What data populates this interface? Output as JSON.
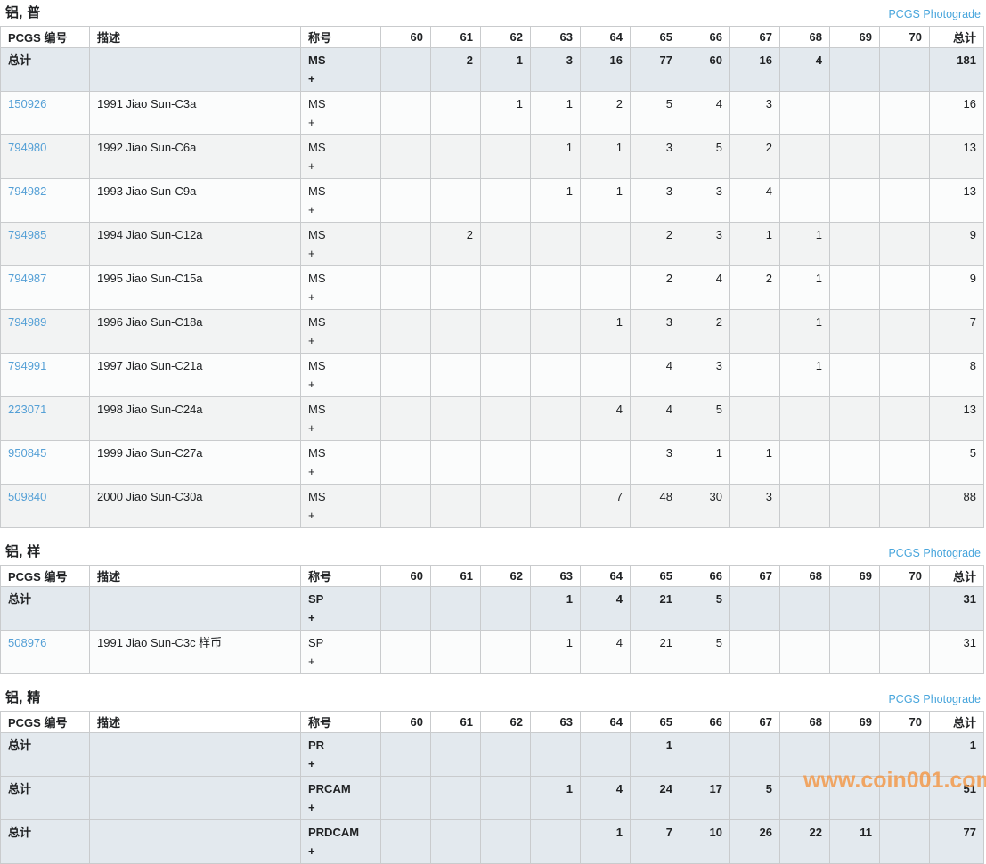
{
  "labels": {
    "photograde": "PCGS Photograde",
    "watermark": "www.coin001.com",
    "total_row_label": "总计"
  },
  "colors": {
    "link_blue": "#55A0D6",
    "photograde_blue": "#47A5DC",
    "total_row_bg": "#E3E9EE",
    "row_light_bg": "#FBFCFC",
    "row_dark_bg": "#F2F3F3",
    "border_gray": "#C9CBCD",
    "text_dark": "#202224",
    "watermark_orange": "rgba(242,153,74,0.85)"
  },
  "columns": {
    "pcgs_no": "PCGS 编号",
    "description": "描述",
    "designation": "称号",
    "grades": [
      "60",
      "61",
      "62",
      "63",
      "64",
      "65",
      "66",
      "67",
      "68",
      "69",
      "70"
    ],
    "total": "总计"
  },
  "tables": [
    {
      "title": "铝, 普",
      "rows": [
        {
          "is_total": true,
          "pcgs_no": "总计",
          "description": "",
          "designation": "MS",
          "plus": "+",
          "grades": [
            "",
            "2",
            "1",
            "3",
            "16",
            "77",
            "60",
            "16",
            "4",
            "",
            ""
          ],
          "total": "181"
        },
        {
          "is_total": false,
          "pcgs_no": "150926",
          "description": "1991 Jiao Sun-C3a",
          "designation": "MS",
          "plus": "+",
          "grades": [
            "",
            "",
            "1",
            "1",
            "2",
            "5",
            "4",
            "3",
            "",
            "",
            ""
          ],
          "total": "16"
        },
        {
          "is_total": false,
          "pcgs_no": "794980",
          "description": "1992 Jiao Sun-C6a",
          "designation": "MS",
          "plus": "+",
          "grades": [
            "",
            "",
            "",
            "1",
            "1",
            "3",
            "5",
            "2",
            "",
            "",
            ""
          ],
          "total": "13"
        },
        {
          "is_total": false,
          "pcgs_no": "794982",
          "description": "1993 Jiao Sun-C9a",
          "designation": "MS",
          "plus": "+",
          "grades": [
            "",
            "",
            "",
            "1",
            "1",
            "3",
            "3",
            "4",
            "",
            "",
            ""
          ],
          "total": "13"
        },
        {
          "is_total": false,
          "pcgs_no": "794985",
          "description": "1994 Jiao Sun-C12a",
          "designation": "MS",
          "plus": "+",
          "grades": [
            "",
            "2",
            "",
            "",
            "",
            "2",
            "3",
            "1",
            "1",
            "",
            ""
          ],
          "total": "9"
        },
        {
          "is_total": false,
          "pcgs_no": "794987",
          "description": "1995 Jiao Sun-C15a",
          "designation": "MS",
          "plus": "+",
          "grades": [
            "",
            "",
            "",
            "",
            "",
            "2",
            "4",
            "2",
            "1",
            "",
            ""
          ],
          "total": "9"
        },
        {
          "is_total": false,
          "pcgs_no": "794989",
          "description": "1996 Jiao Sun-C18a",
          "designation": "MS",
          "plus": "+",
          "grades": [
            "",
            "",
            "",
            "",
            "1",
            "3",
            "2",
            "",
            "1",
            "",
            ""
          ],
          "total": "7"
        },
        {
          "is_total": false,
          "pcgs_no": "794991",
          "description": "1997 Jiao Sun-C21a",
          "designation": "MS",
          "plus": "+",
          "grades": [
            "",
            "",
            "",
            "",
            "",
            "4",
            "3",
            "",
            "1",
            "",
            ""
          ],
          "total": "8"
        },
        {
          "is_total": false,
          "pcgs_no": "223071",
          "description": "1998 Jiao Sun-C24a",
          "designation": "MS",
          "plus": "+",
          "grades": [
            "",
            "",
            "",
            "",
            "4",
            "4",
            "5",
            "",
            "",
            "",
            ""
          ],
          "total": "13"
        },
        {
          "is_total": false,
          "pcgs_no": "950845",
          "description": "1999 Jiao Sun-C27a",
          "designation": "MS",
          "plus": "+",
          "grades": [
            "",
            "",
            "",
            "",
            "",
            "3",
            "1",
            "1",
            "",
            "",
            ""
          ],
          "total": "5"
        },
        {
          "is_total": false,
          "pcgs_no": "509840",
          "description": "2000 Jiao Sun-C30a",
          "designation": "MS",
          "plus": "+",
          "grades": [
            "",
            "",
            "",
            "",
            "7",
            "48",
            "30",
            "3",
            "",
            "",
            ""
          ],
          "total": "88"
        }
      ]
    },
    {
      "title": "铝, 样",
      "rows": [
        {
          "is_total": true,
          "pcgs_no": "总计",
          "description": "",
          "designation": "SP",
          "plus": "+",
          "grades": [
            "",
            "",
            "",
            "1",
            "4",
            "21",
            "5",
            "",
            "",
            "",
            ""
          ],
          "total": "31"
        },
        {
          "is_total": false,
          "pcgs_no": "508976",
          "description": "1991 Jiao Sun-C3c 样币",
          "designation": "SP",
          "plus": "+",
          "grades": [
            "",
            "",
            "",
            "1",
            "4",
            "21",
            "5",
            "",
            "",
            "",
            ""
          ],
          "total": "31"
        }
      ]
    },
    {
      "title": "铝, 精",
      "rows": [
        {
          "is_total": true,
          "pcgs_no": "总计",
          "description": "",
          "designation": "PR",
          "plus": "+",
          "grades": [
            "",
            "",
            "",
            "",
            "",
            "1",
            "",
            "",
            "",
            "",
            ""
          ],
          "total": "1"
        },
        {
          "is_total": true,
          "pcgs_no": "总计",
          "description": "",
          "designation": "PRCAM",
          "plus": "+",
          "grades": [
            "",
            "",
            "",
            "1",
            "4",
            "24",
            "17",
            "5",
            "",
            "",
            ""
          ],
          "total": "51"
        },
        {
          "is_total": true,
          "pcgs_no": "总计",
          "description": "",
          "designation": "PRDCAM",
          "plus": "+",
          "grades": [
            "",
            "",
            "",
            "",
            "1",
            "7",
            "10",
            "26",
            "22",
            "11",
            ""
          ],
          "total": "77"
        }
      ]
    }
  ]
}
